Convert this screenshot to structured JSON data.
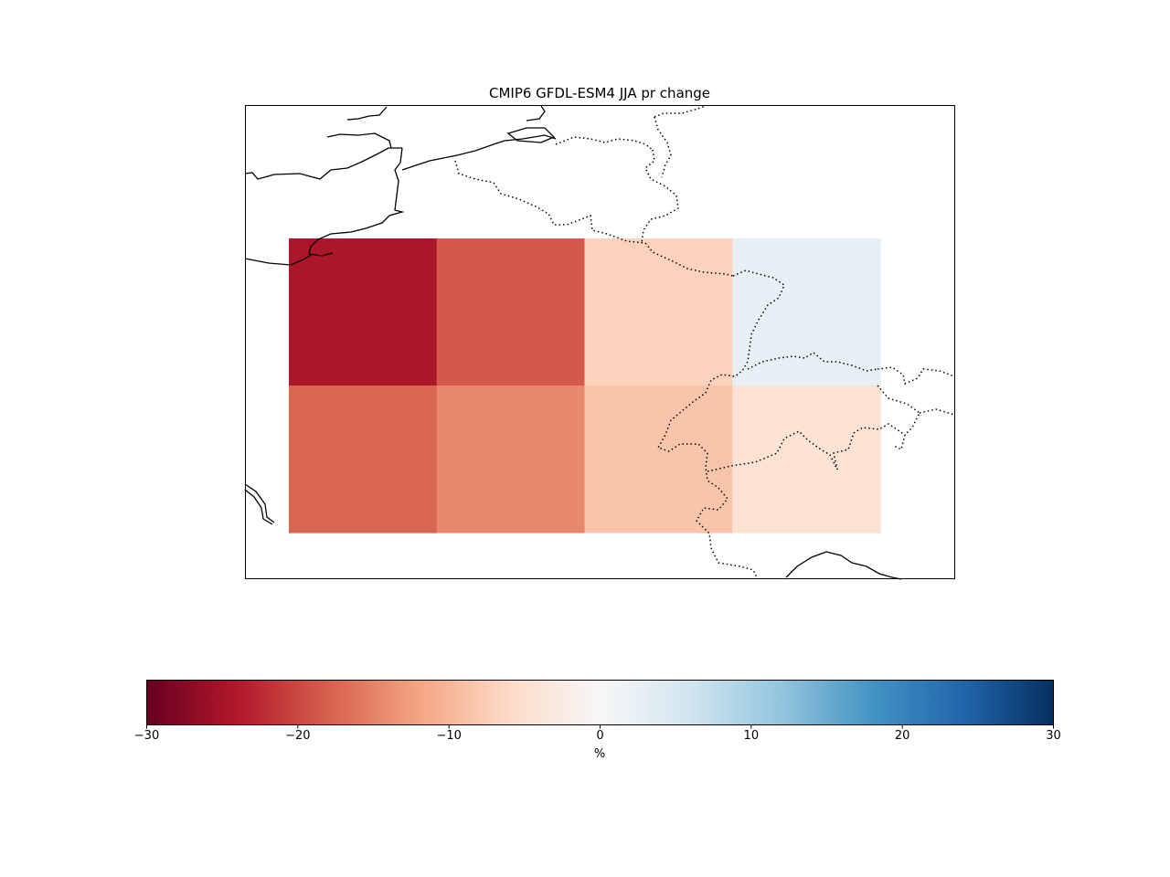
{
  "title": "CMIP6 GFDL-ESM4 JJA pr change",
  "colorbar": {
    "label": "%",
    "vmin": -30,
    "vmax": 30,
    "ticks": [
      -30,
      -20,
      -10,
      0,
      10,
      20,
      30
    ],
    "tick_labels": [
      "−30",
      "−20",
      "−10",
      "0",
      "10",
      "20",
      "30"
    ],
    "colormap": "RdBu",
    "stops": [
      "#67001f",
      "#b2182b",
      "#d6604d",
      "#f4a582",
      "#fddbc7",
      "#f7f7f7",
      "#d1e5f0",
      "#92c5de",
      "#4393c3",
      "#2166ac",
      "#053061"
    ]
  },
  "chart_data": {
    "type": "heatmap",
    "variable": "pr",
    "season": "JJA",
    "units": "%",
    "grid": {
      "rows": 2,
      "cols": 4,
      "values": [
        [
          -24.5,
          -18.5,
          -7.0,
          2.5
        ],
        [
          -17.5,
          -14.5,
          -8.5,
          -4.5
        ]
      ]
    }
  },
  "map_features": [
    "coastline",
    "country-borders"
  ]
}
